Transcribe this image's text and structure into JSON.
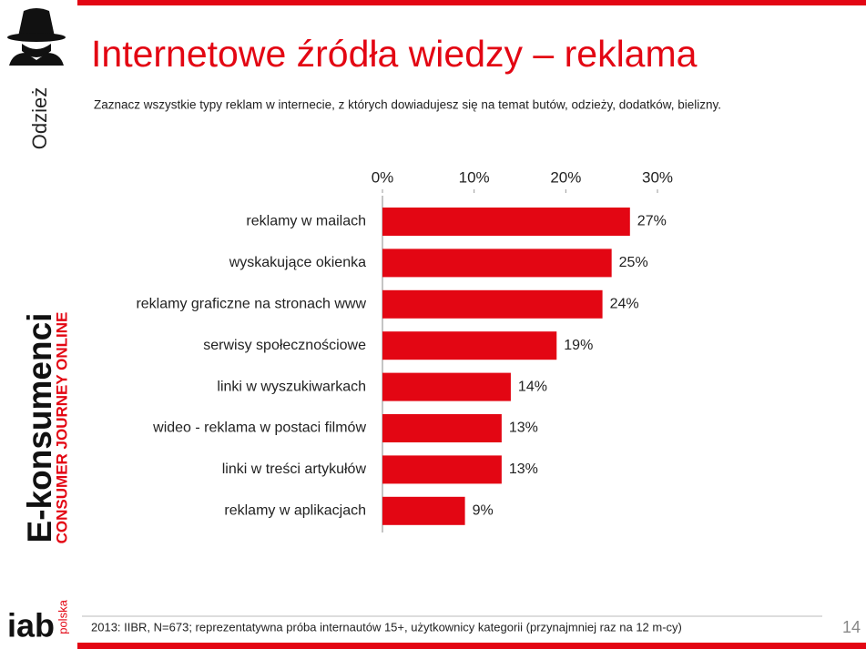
{
  "sidebar": {
    "section": "Odzież",
    "brand": "E-konsumenci",
    "tagline": "CONSUMER JOURNEY ONLINE",
    "logo": "iab",
    "logo_sub": "polska"
  },
  "chart_data": {
    "type": "bar",
    "orientation": "horizontal",
    "title": "Internetowe źródła wiedzy – reklama",
    "subtitle": "Zaznacz wszystkie typy reklam w internecie, z których dowiadujesz się na temat butów, odzieży, dodatków, bielizny.",
    "categories": [
      "reklamy w mailach",
      "wyskakujące okienka",
      "reklamy graficzne na stronach www",
      "serwisy społecznościowe",
      "linki w wyszukiwarkach",
      "wideo - reklama w postaci filmów",
      "linki w treści artykułów",
      "reklamy w aplikacjach"
    ],
    "values": [
      27,
      25,
      24,
      19,
      14,
      13,
      13,
      9
    ],
    "value_labels": [
      "27%",
      "25%",
      "24%",
      "19%",
      "14%",
      "13%",
      "13%",
      "9%"
    ],
    "color": "#e30613",
    "xlim": [
      0,
      30
    ],
    "xticks": [
      {
        "value": 0,
        "label": "0%"
      },
      {
        "value": 10,
        "label": "10%"
      },
      {
        "value": 20,
        "label": "20%"
      },
      {
        "value": 30,
        "label": "30%"
      }
    ],
    "grid": false
  },
  "footer": {
    "source": "2013: IIBR, N=673; reprezentatywna próba internautów 15+, użytkownicy kategorii (przynajmniej raz na 12 m-cy)",
    "page": "14"
  }
}
